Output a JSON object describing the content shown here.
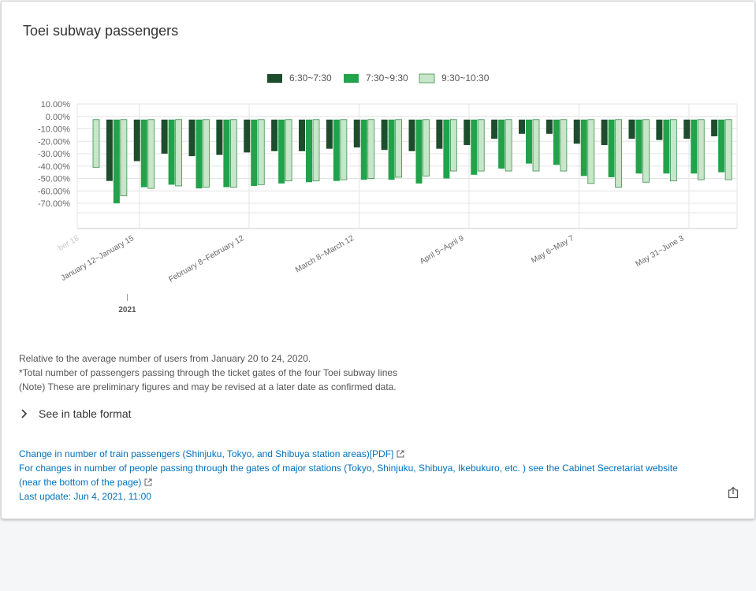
{
  "card": {
    "title": "Toei subway passengers"
  },
  "colors": {
    "series1": "#1d4d2c",
    "series2": "#22a24a",
    "series3": "#c8e6c9",
    "series3_stroke": "#3e8e4e",
    "link": "#0071bc"
  },
  "chart_data": {
    "type": "bar",
    "legend_position": "top",
    "grid": true,
    "ylim": [
      -70,
      10
    ],
    "ytick_values": [
      10,
      0,
      -10,
      -20,
      -30,
      -40,
      -50,
      -60,
      -70
    ],
    "ytick_labels": [
      "10.00%",
      "0.00%",
      "-10.00%",
      "-20.00%",
      "-30.00%",
      "-40.00%",
      "-50.00%",
      "-60.00%",
      "-70.00%"
    ],
    "x_labels": [
      {
        "index": 0,
        "text": "ber 18"
      },
      {
        "index": 2,
        "text": "January 12~January 15"
      },
      {
        "index": 6,
        "text": "February 8~February 12"
      },
      {
        "index": 10,
        "text": "March 8~March 12"
      },
      {
        "index": 14,
        "text": "April 5~April 9"
      },
      {
        "index": 18,
        "text": "May 6~May 7"
      },
      {
        "index": 22,
        "text": "May 31~June 3"
      }
    ],
    "year_marker": {
      "index": 2,
      "text": "2021"
    },
    "series": [
      {
        "name": "6:30~7:30",
        "values": [
          null,
          -52,
          -36,
          -30,
          -32,
          -31,
          -29,
          -28,
          -28,
          -26,
          -25,
          -27,
          -28,
          -26,
          -23,
          -18,
          -14,
          -14,
          -22,
          -23,
          -18,
          -19,
          -18,
          -16
        ]
      },
      {
        "name": "7:30~9:30",
        "values": [
          null,
          -70,
          -57,
          -55,
          -58,
          -57,
          -56,
          -54,
          -53,
          -52,
          -51,
          -51,
          -54,
          -50,
          -47,
          -42,
          -38,
          -39,
          -48,
          -49,
          -46,
          -46,
          -46,
          -45
        ]
      },
      {
        "name": "9:30~10:30",
        "values": [
          -41,
          -64,
          -58,
          -56,
          -57,
          -57,
          -55,
          -52,
          -52,
          -51,
          -50,
          -49,
          -48,
          -44,
          -44,
          -44,
          -44,
          -44,
          -54,
          -57,
          -53,
          -52,
          -51,
          -51
        ]
      }
    ]
  },
  "notes": [
    "Relative to the average number of users from January 20 to 24, 2020.",
    "*Total number of passengers passing through the ticket gates of the four Toei subway lines",
    "(Note) These are preliminary figures and may be revised at a later date as confirmed data."
  ],
  "table_toggle": {
    "label": "See in table format",
    "icon": "chevron-right-icon"
  },
  "links": {
    "train_passengers": "Change in number of train passengers (Shinjuku, Tokyo, and Shibuya station areas)[PDF]",
    "cabinet_line1": "For changes in number of people passing through the gates of major stations (Tokyo, Shinjuku, Shibuya, Ikebukuro, etc. ) see the Cabinet Secretariat website",
    "cabinet_line2": "(near the bottom of the page)",
    "last_update": "Last update: Jun 4, 2021, 11:00"
  },
  "icons": {
    "external_link": "external-link-icon",
    "share": "share-icon"
  }
}
